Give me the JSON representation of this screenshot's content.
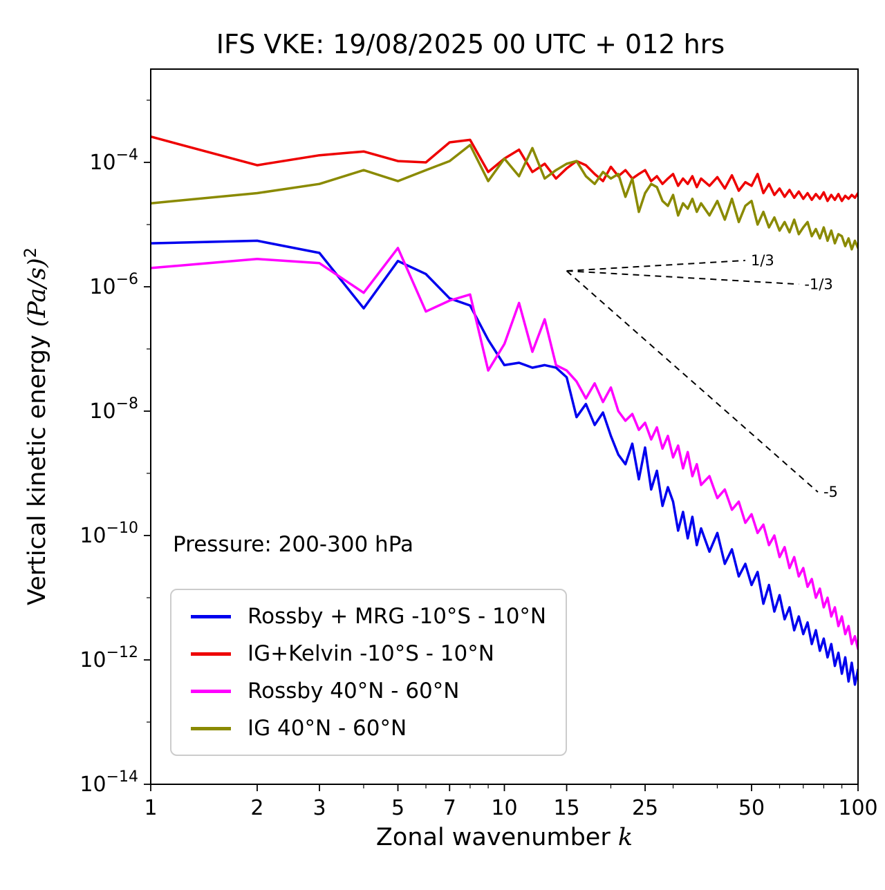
{
  "labels": {
    "xlabel_prefix": "Zonal wavenumber ",
    "xlabel_math": "k",
    "ylabel_prefix": "Vertical kinetic energy ",
    "ylabel_math": "(Pa/s)",
    "ylabel_sup": "2"
  },
  "annotation": {
    "text": "Pressure: 200-300 hPa"
  },
  "chart_data": {
    "type": "line",
    "title": "IFS VKE: 19/08/2025 00 UTC + 012 hrs",
    "xlabel": "Zonal wavenumber k",
    "ylabel": "Vertical kinetic energy (Pa/s)^2",
    "x_scale": "log",
    "y_scale": "log",
    "xlim": [
      1,
      100
    ],
    "ylim_exponents": [
      -14,
      -2.5
    ],
    "x_ticks": [
      1,
      2,
      3,
      5,
      7,
      10,
      15,
      25,
      50,
      100
    ],
    "x_minor_ticks": [
      4,
      6,
      8,
      9,
      20,
      30,
      40,
      60,
      70,
      80,
      90
    ],
    "y_tick_exponents": [
      -4,
      -6,
      -8,
      -10,
      -12,
      -14
    ],
    "y_minor_tick_exponents": [
      -3,
      -5,
      -7,
      -9,
      -11,
      -13
    ],
    "grid": false,
    "legend_position": "lower left",
    "shared_x": [
      1,
      2,
      3,
      4,
      5,
      6,
      7,
      8,
      9,
      10,
      11,
      12,
      13,
      14,
      15,
      16,
      17,
      18,
      19,
      20,
      21,
      22,
      23,
      24,
      25,
      26,
      27,
      28,
      29,
      30,
      31,
      32,
      33,
      34,
      35,
      36,
      38,
      40,
      42,
      44,
      46,
      48,
      50,
      52,
      54,
      56,
      58,
      60,
      62,
      64,
      66,
      68,
      70,
      72,
      74,
      76,
      78,
      80,
      82,
      84,
      86,
      88,
      90,
      92,
      94,
      96,
      98,
      100
    ],
    "series": [
      {
        "name": "Rossby + MRG -10°S - 10°N",
        "color": "#0000ee",
        "y": [
          5e-06,
          5.5e-06,
          3.5e-06,
          4.5e-07,
          2.6e-06,
          1.6e-06,
          6.5e-07,
          5e-07,
          1.4e-07,
          5.5e-08,
          6e-08,
          5e-08,
          5.5e-08,
          5e-08,
          3.5e-08,
          8e-09,
          1.3e-08,
          6e-09,
          9.5e-09,
          4e-09,
          2e-09,
          1.4e-09,
          3e-09,
          8e-10,
          2.6e-09,
          5.5e-10,
          1.1e-09,
          3e-10,
          6e-10,
          3.5e-10,
          1.2e-10,
          2.4e-10,
          9e-11,
          2e-10,
          7e-11,
          1.3e-10,
          5.5e-11,
          1.1e-10,
          3.5e-11,
          6e-11,
          2.2e-11,
          3.5e-11,
          1.6e-11,
          2.6e-11,
          8e-12,
          1.6e-11,
          6e-12,
          1.1e-11,
          4.5e-12,
          7e-12,
          3e-12,
          5e-12,
          2.6e-12,
          4e-12,
          1.8e-12,
          3e-12,
          1.4e-12,
          2.2e-12,
          1.1e-12,
          1.8e-12,
          8e-13,
          1.3e-12,
          6e-13,
          1.1e-12,
          4.5e-13,
          9e-13,
          4e-13,
          7e-13
        ]
      },
      {
        "name": "IG+Kelvin -10°S - 10°N",
        "color": "#ee0000",
        "y": [
          0.00026,
          9e-05,
          0.00013,
          0.00015,
          0.000105,
          0.0001,
          0.00021,
          0.00023,
          7e-05,
          0.000115,
          0.00016,
          7e-05,
          9.5e-05,
          5.5e-05,
          8e-05,
          0.000105,
          9e-05,
          6.5e-05,
          5e-05,
          8.5e-05,
          6e-05,
          7.5e-05,
          5.5e-05,
          6.5e-05,
          7.5e-05,
          5e-05,
          6e-05,
          4.5e-05,
          5.5e-05,
          6.5e-05,
          4.2e-05,
          5.5e-05,
          4.5e-05,
          6e-05,
          4e-05,
          5.5e-05,
          4.2e-05,
          5.8e-05,
          3.8e-05,
          6.2e-05,
          3.5e-05,
          4.8e-05,
          4.2e-05,
          6.5e-05,
          3.2e-05,
          4.5e-05,
          3e-05,
          3.8e-05,
          2.8e-05,
          3.6e-05,
          2.7e-05,
          3.4e-05,
          2.6e-05,
          3.2e-05,
          2.5e-05,
          3.1e-05,
          2.6e-05,
          3.3e-05,
          2.4e-05,
          3e-05,
          2.5e-05,
          3.1e-05,
          2.4e-05,
          2.9e-05,
          2.6e-05,
          3e-05,
          2.7e-05,
          3.2e-05
        ]
      },
      {
        "name": "Rossby 40°N - 60°N",
        "color": "#ff00ff",
        "y": [
          2e-06,
          2.8e-06,
          2.4e-06,
          8e-07,
          4.2e-06,
          4e-07,
          6e-07,
          7.5e-07,
          4.5e-08,
          1.2e-07,
          5.5e-07,
          9e-08,
          3e-07,
          5.5e-08,
          4.5e-08,
          3e-08,
          1.6e-08,
          2.8e-08,
          1.4e-08,
          2.4e-08,
          1e-08,
          7e-09,
          9e-09,
          5e-09,
          6.5e-09,
          3.5e-09,
          5.5e-09,
          2.5e-09,
          4e-09,
          1.8e-09,
          2.8e-09,
          1.2e-09,
          2.2e-09,
          9e-10,
          1.4e-09,
          6.5e-10,
          9e-10,
          4e-10,
          5.5e-10,
          2.6e-10,
          3.5e-10,
          1.6e-10,
          2.2e-10,
          1.1e-10,
          1.5e-10,
          7e-11,
          1e-10,
          4.5e-11,
          6.5e-11,
          3e-11,
          4.5e-11,
          2.2e-11,
          3e-11,
          1.5e-11,
          2e-11,
          1e-11,
          1.4e-11,
          7e-12,
          1e-11,
          5e-12,
          7e-12,
          3.5e-12,
          5e-12,
          2.6e-12,
          3.5e-12,
          1.8e-12,
          2.4e-12,
          1.5e-12
        ]
      },
      {
        "name": "IG 40°N - 60°N",
        "color": "#8a8a00",
        "y": [
          2.2e-05,
          3.2e-05,
          4.5e-05,
          7.5e-05,
          5e-05,
          7.5e-05,
          0.000105,
          0.00019,
          5e-05,
          0.000115,
          6e-05,
          0.00017,
          5.5e-05,
          7.5e-05,
          9.5e-05,
          0.000105,
          6e-05,
          4.5e-05,
          7e-05,
          5.5e-05,
          6.5e-05,
          2.8e-05,
          5.5e-05,
          1.6e-05,
          3.2e-05,
          4.5e-05,
          4e-05,
          2.4e-05,
          2e-05,
          3e-05,
          1.4e-05,
          2.2e-05,
          1.8e-05,
          2.6e-05,
          1.6e-05,
          2.2e-05,
          1.4e-05,
          2.4e-05,
          1.2e-05,
          2.6e-05,
          1.1e-05,
          2e-05,
          2.4e-05,
          1e-05,
          1.6e-05,
          9e-06,
          1.3e-05,
          8e-06,
          1.1e-05,
          7.5e-06,
          1.2e-05,
          7e-06,
          9e-06,
          1.1e-05,
          6.5e-06,
          8.5e-06,
          6e-06,
          9e-06,
          5.5e-06,
          8e-06,
          5e-06,
          7e-06,
          6.5e-06,
          4.5e-06,
          6e-06,
          4e-06,
          5.5e-06,
          4.2e-06
        ]
      }
    ],
    "ref_lines": [
      {
        "label": "1/3",
        "x1": 15,
        "y1": 1.8e-06,
        "x2": 48,
        "y2": 2.65e-06
      },
      {
        "label": "-1/3",
        "x1": 15,
        "y1": 1.8e-06,
        "x2": 68,
        "y2": 1.1e-06
      },
      {
        "label": "-5",
        "x1": 15,
        "y1": 1.8e-06,
        "x2": 77,
        "y2": 5e-10
      }
    ]
  }
}
